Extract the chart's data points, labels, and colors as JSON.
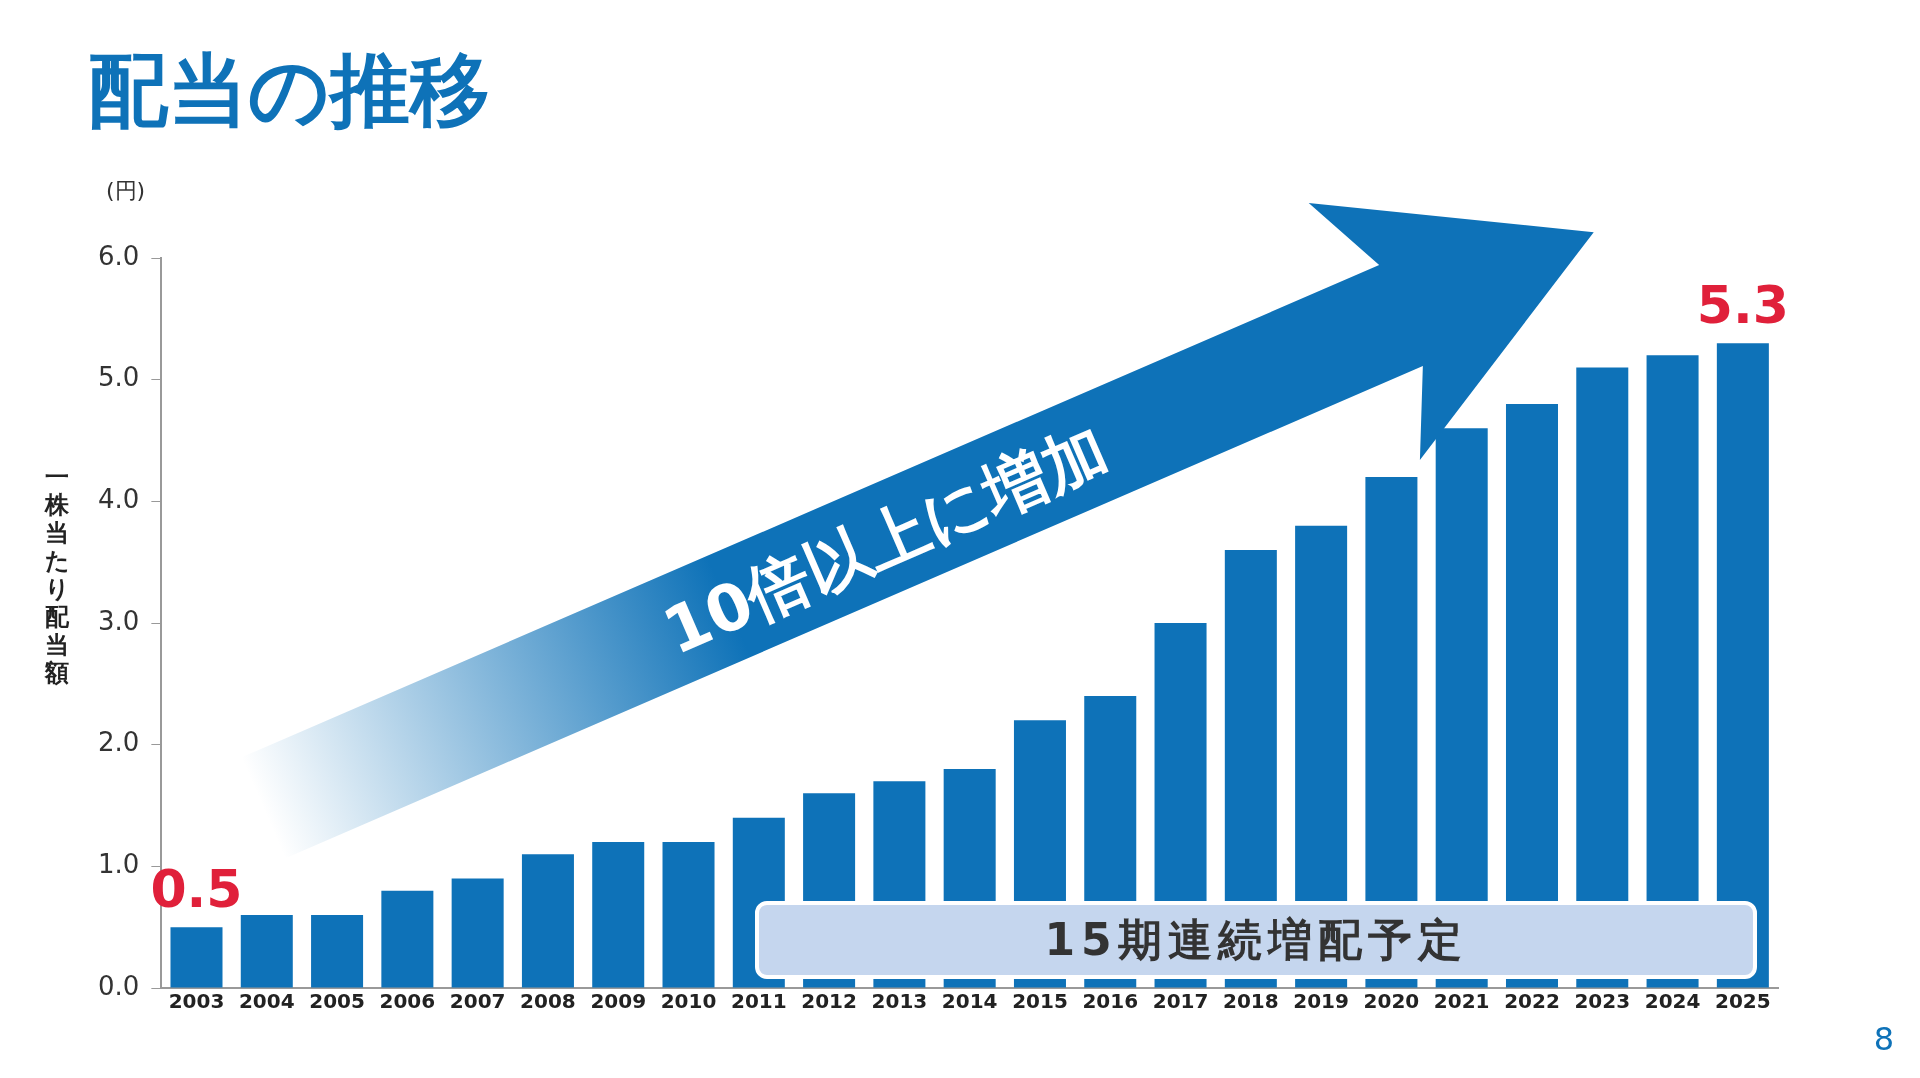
{
  "chart_data": {
    "type": "bar",
    "title": "配当の推移",
    "ylabel": "一株当たり配当額",
    "categories": [
      "2003",
      "2004",
      "2005",
      "2006",
      "2007",
      "2008",
      "2009",
      "2010",
      "2011",
      "2012",
      "2013",
      "2014",
      "2015",
      "2016",
      "2017",
      "2018",
      "2019",
      "2020",
      "2021",
      "2022",
      "2023",
      "2024",
      "2025"
    ],
    "values": [
      0.5,
      0.6,
      0.6,
      0.8,
      0.9,
      1.1,
      1.2,
      1.2,
      1.4,
      1.6,
      1.7,
      1.8,
      2.2,
      2.4,
      3.0,
      3.6,
      3.8,
      4.2,
      4.6,
      4.8,
      5.1,
      5.2,
      5.3
    ],
    "value_labels": [
      "0.5",
      null,
      null,
      null,
      null,
      null,
      null,
      null,
      null,
      null,
      null,
      null,
      null,
      null,
      null,
      null,
      null,
      null,
      null,
      null,
      null,
      null,
      "5.3"
    ],
    "color": "#0e72b8",
    "ylim": [
      0,
      6
    ],
    "yticks": [
      {
        "value": 0,
        "label": "0.0"
      },
      {
        "value": 1,
        "label": "1.0"
      },
      {
        "value": 2,
        "label": "2.0"
      },
      {
        "value": 3,
        "label": "3.0"
      },
      {
        "value": 4,
        "label": "4.0"
      },
      {
        "value": 5,
        "label": "5.0"
      },
      {
        "value": 6,
        "label": "6.0"
      }
    ],
    "grid": false,
    "legend": false,
    "annotations": [
      "(円)",
      "10倍以上に増加",
      "15期連続増配予定",
      "8"
    ]
  }
}
